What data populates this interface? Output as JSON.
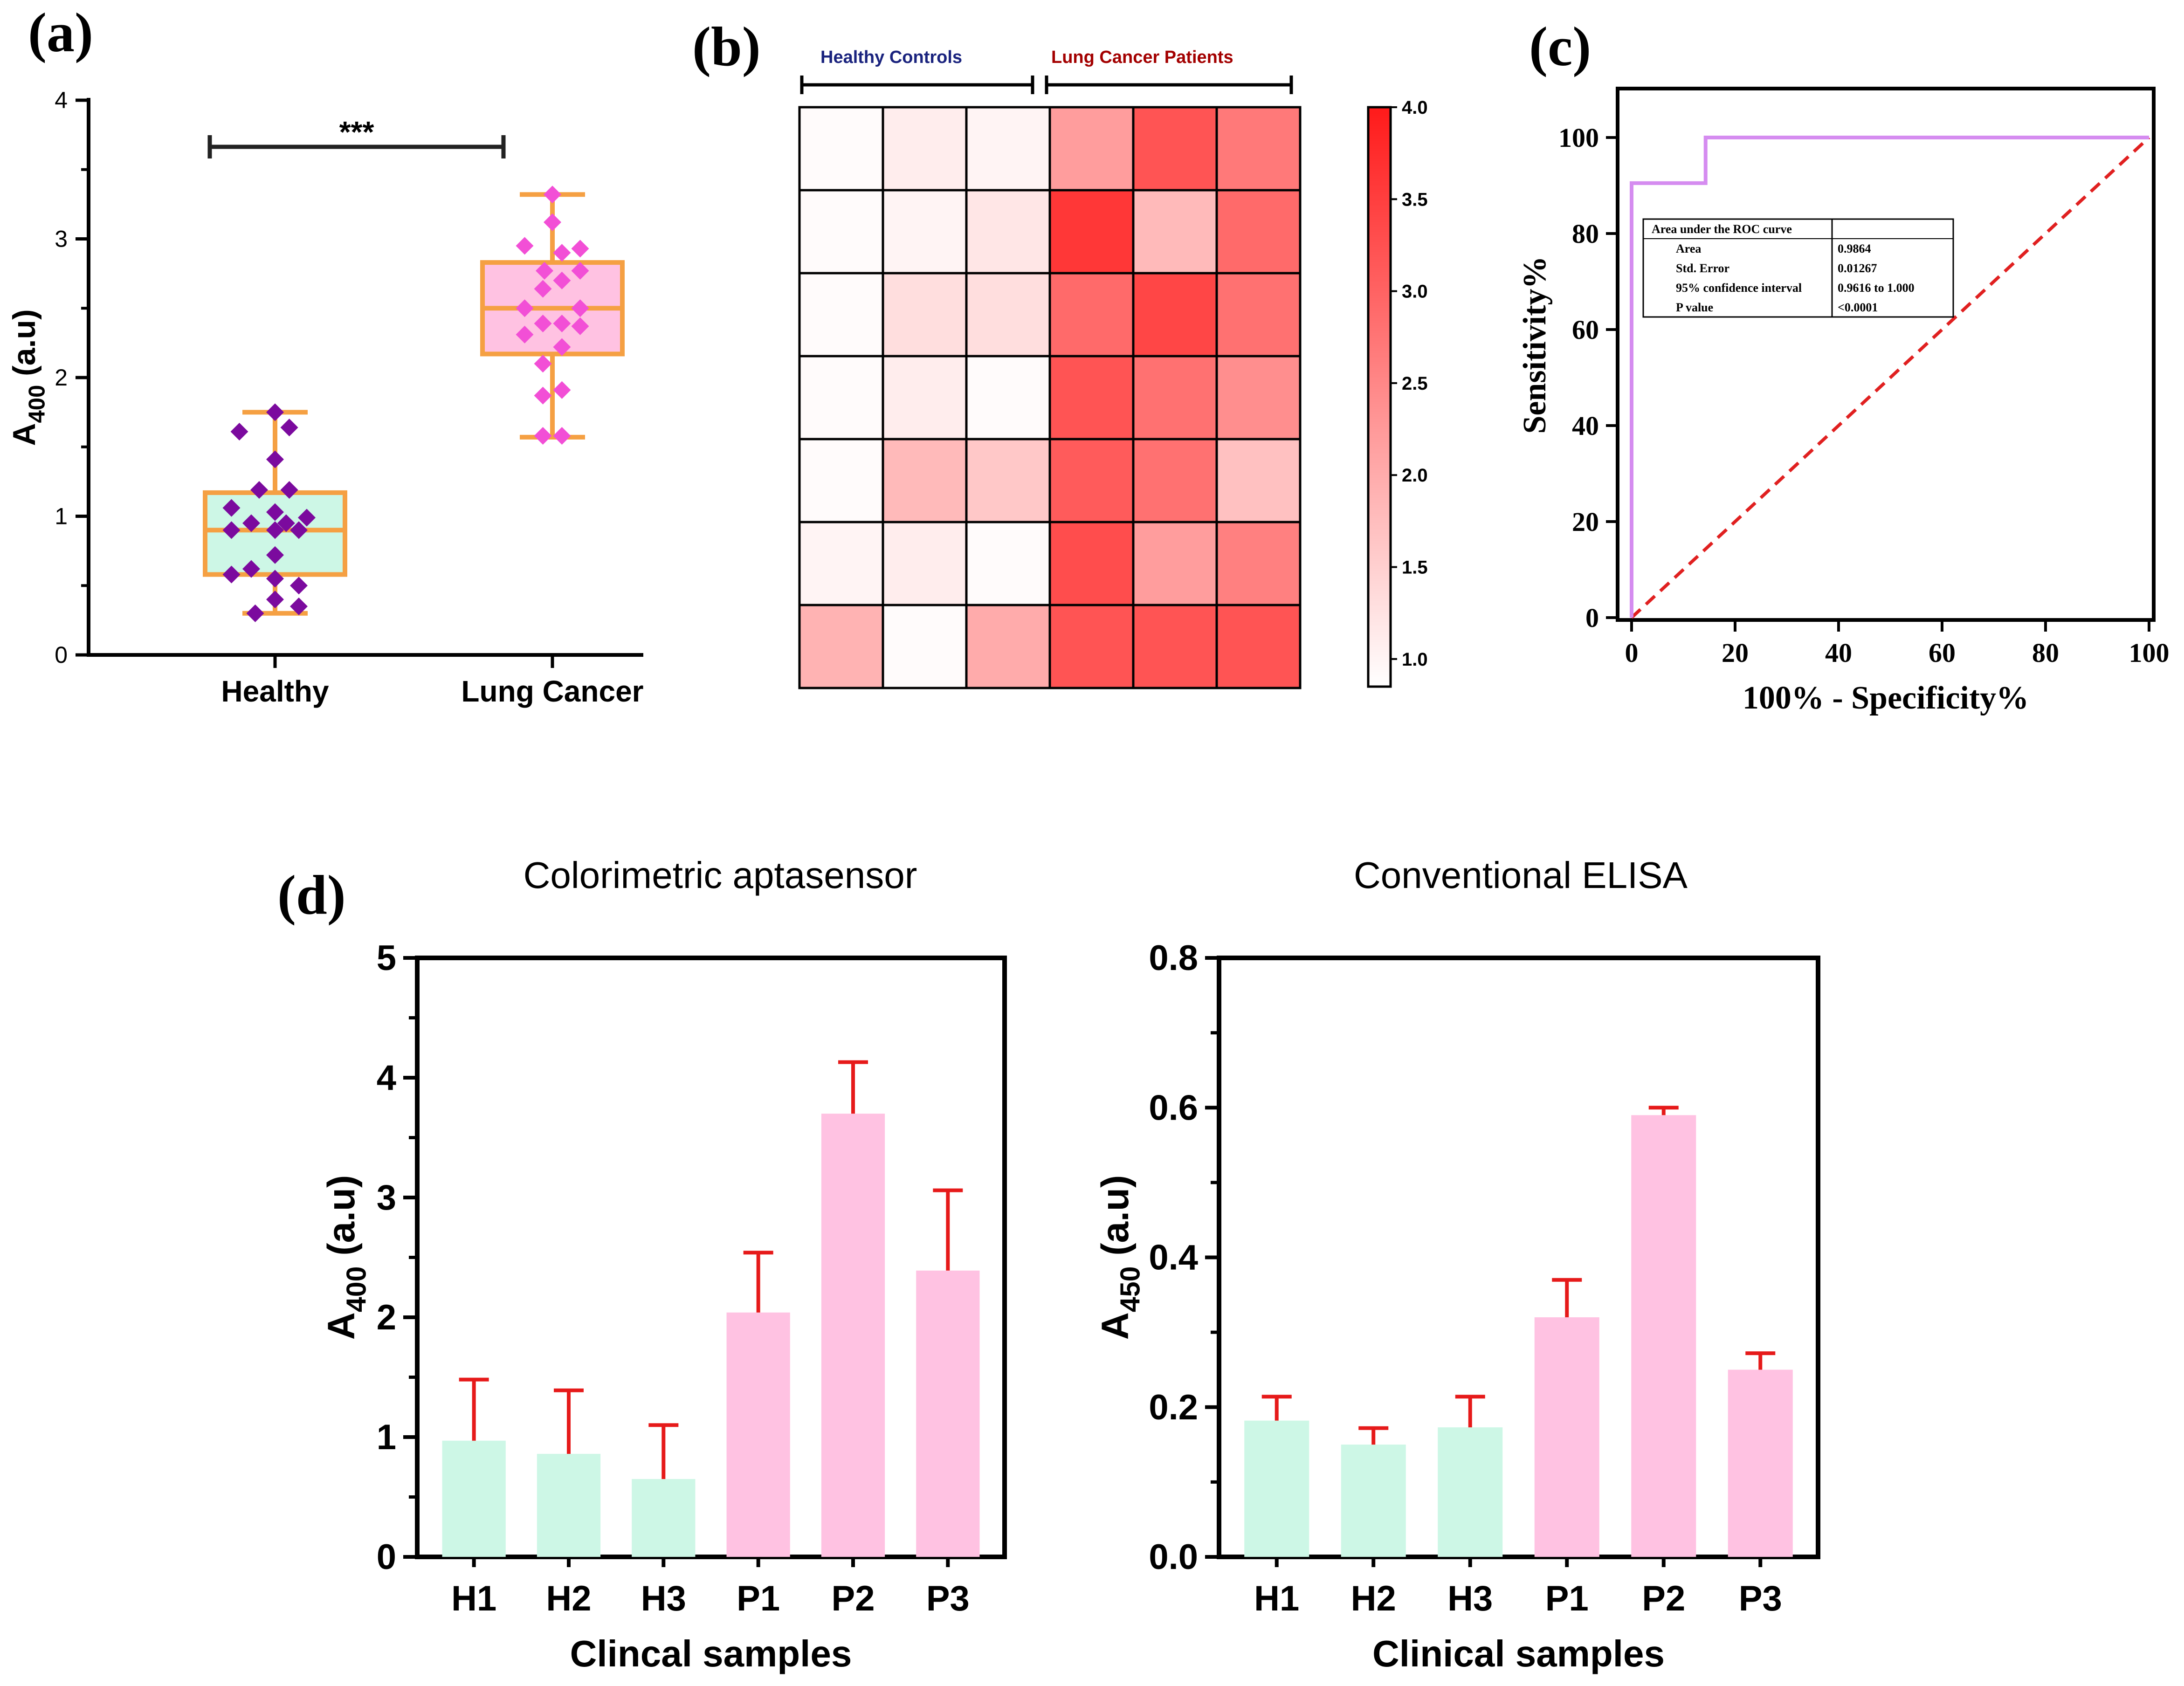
{
  "panel_labels": {
    "a": "(a)",
    "b": "(b)",
    "c": "(c)",
    "d": "(d)"
  },
  "colors": {
    "healthy_fill": "#cdf7e6",
    "cancer_fill": "#ffc2e2",
    "box_edge": "#f5a043",
    "healthy_point": "#7b0a9e",
    "cancer_point": "#f24fd6",
    "roc_line": "#d58cf0",
    "ref_line": "#e02020",
    "error_bar": "#e61a1a",
    "heat_max": "#ff1a1a",
    "heat_min": "#ffffff",
    "healthy_label": "#1a237e",
    "cancer_label": "#a30000"
  },
  "chart_data": [
    {
      "id": "a",
      "type": "box",
      "title": "",
      "ylabel": {
        "main": "A",
        "sub": "400",
        "tail": " (a.u)"
      },
      "ylim": [
        0,
        4
      ],
      "yticks": [
        "0",
        "1",
        "2",
        "3",
        "4"
      ],
      "categories": [
        "Healthy",
        "Lung Cancer"
      ],
      "significance": "***",
      "boxes": [
        {
          "name": "Healthy",
          "min": 0.3,
          "q1": 0.58,
          "median": 0.9,
          "q3": 1.17,
          "max": 1.75
        },
        {
          "name": "Lung Cancer",
          "min": 1.57,
          "q1": 2.17,
          "median": 2.5,
          "q3": 2.83,
          "max": 3.32
        }
      ],
      "points": [
        [
          {
            "dx": -0.45,
            "y": 1.61
          },
          {
            "dx": 0.0,
            "y": 1.75
          },
          {
            "dx": 0.18,
            "y": 1.64
          },
          {
            "dx": 0.0,
            "y": 1.41
          },
          {
            "dx": -0.2,
            "y": 1.19
          },
          {
            "dx": 0.18,
            "y": 1.19
          },
          {
            "dx": -0.55,
            "y": 1.06
          },
          {
            "dx": 0.0,
            "y": 1.03
          },
          {
            "dx": 0.4,
            "y": 0.99
          },
          {
            "dx": -0.3,
            "y": 0.95
          },
          {
            "dx": 0.14,
            "y": 0.95
          },
          {
            "dx": -0.55,
            "y": 0.9
          },
          {
            "dx": 0.0,
            "y": 0.9
          },
          {
            "dx": 0.3,
            "y": 0.9
          },
          {
            "dx": 0.0,
            "y": 0.72
          },
          {
            "dx": -0.3,
            "y": 0.62
          },
          {
            "dx": -0.55,
            "y": 0.58
          },
          {
            "dx": 0.0,
            "y": 0.55
          },
          {
            "dx": 0.3,
            "y": 0.5
          },
          {
            "dx": 0.0,
            "y": 0.4
          },
          {
            "dx": 0.3,
            "y": 0.35
          },
          {
            "dx": -0.25,
            "y": 0.3
          }
        ],
        [
          {
            "dx": 0.0,
            "y": 3.32
          },
          {
            "dx": 0.0,
            "y": 3.12
          },
          {
            "dx": -0.35,
            "y": 2.95
          },
          {
            "dx": 0.35,
            "y": 2.93
          },
          {
            "dx": 0.12,
            "y": 2.9
          },
          {
            "dx": -0.1,
            "y": 2.77
          },
          {
            "dx": 0.35,
            "y": 2.77
          },
          {
            "dx": 0.12,
            "y": 2.7
          },
          {
            "dx": -0.12,
            "y": 2.64
          },
          {
            "dx": -0.35,
            "y": 2.5
          },
          {
            "dx": 0.35,
            "y": 2.5
          },
          {
            "dx": -0.12,
            "y": 2.39
          },
          {
            "dx": 0.12,
            "y": 2.39
          },
          {
            "dx": 0.35,
            "y": 2.37
          },
          {
            "dx": -0.35,
            "y": 2.31
          },
          {
            "dx": 0.12,
            "y": 2.22
          },
          {
            "dx": -0.12,
            "y": 2.1
          },
          {
            "dx": 0.12,
            "y": 1.91
          },
          {
            "dx": -0.12,
            "y": 1.87
          },
          {
            "dx": -0.12,
            "y": 1.58
          },
          {
            "dx": 0.12,
            "y": 1.58
          }
        ]
      ]
    },
    {
      "id": "b",
      "type": "heatmap",
      "group_labels": [
        "Healthy Controls",
        "Lung Cancer Patients"
      ],
      "group_columns": [
        3,
        3
      ],
      "colorbar": {
        "min": 0.85,
        "max": 4.0,
        "ticks": [
          "1.0",
          "1.5",
          "2.0",
          "2.5",
          "3.0",
          "3.5",
          "4.0"
        ]
      },
      "values": [
        [
          0.9,
          1.1,
          1.0,
          2.2,
          3.2,
          2.7
        ],
        [
          0.9,
          1.0,
          1.2,
          3.6,
          1.8,
          2.9
        ],
        [
          0.9,
          1.3,
          1.3,
          2.9,
          3.4,
          2.8
        ],
        [
          0.9,
          1.1,
          0.9,
          3.2,
          2.8,
          2.4
        ],
        [
          0.9,
          1.8,
          1.6,
          3.1,
          2.8,
          1.7
        ],
        [
          1.0,
          1.1,
          0.9,
          3.3,
          2.2,
          2.6
        ],
        [
          1.9,
          0.9,
          2.0,
          3.2,
          3.2,
          3.2
        ]
      ]
    },
    {
      "id": "c",
      "type": "line",
      "xlabel": "100% - Specificity%",
      "ylabel": "Sensitivity%",
      "xlim": [
        0,
        100
      ],
      "ylim": [
        0,
        100
      ],
      "xticks": [
        "0",
        "20",
        "40",
        "60",
        "80",
        "100"
      ],
      "yticks": [
        "0",
        "20",
        "40",
        "60",
        "80",
        "100"
      ],
      "series": [
        {
          "name": "ROC",
          "x": [
            0,
            0,
            14.3,
            14.3,
            100
          ],
          "y": [
            0,
            90.5,
            90.5,
            100,
            100
          ]
        },
        {
          "name": "Reference",
          "x": [
            0,
            100
          ],
          "y": [
            0,
            100
          ]
        }
      ],
      "table": {
        "header": "Area under the ROC curve",
        "rows": [
          [
            "Area",
            "0.9864"
          ],
          [
            "Std. Error",
            "0.01267"
          ],
          [
            "95% confidence interval",
            "0.9616 to 1.000"
          ],
          [
            "P value",
            "<0.0001"
          ]
        ]
      }
    },
    {
      "id": "d1",
      "type": "bar",
      "title": "Colorimetric aptasensor",
      "xlabel": "Clincal samples",
      "ylabel": {
        "main": "A",
        "sub": "400",
        "tail": " (a.u)"
      },
      "ylim": [
        0,
        5
      ],
      "yticks": [
        "0",
        "1",
        "2",
        "3",
        "4",
        "5"
      ],
      "categories": [
        "H1",
        "H2",
        "H3",
        "P1",
        "P2",
        "P3"
      ],
      "values": [
        0.97,
        0.86,
        0.65,
        2.04,
        3.7,
        2.39
      ],
      "errors": [
        0.51,
        0.53,
        0.45,
        0.5,
        0.43,
        0.67
      ],
      "groups": [
        "healthy",
        "healthy",
        "healthy",
        "cancer",
        "cancer",
        "cancer"
      ]
    },
    {
      "id": "d2",
      "type": "bar",
      "title": "Conventional ELISA",
      "xlabel": "Clinical samples",
      "ylabel": {
        "main": "A",
        "sub": "450",
        "tail": " (a.u)"
      },
      "ylim": [
        0,
        0.8
      ],
      "yticks": [
        "0.0",
        "0.2",
        "0.4",
        "0.6",
        "0.8"
      ],
      "categories": [
        "H1",
        "H2",
        "H3",
        "P1",
        "P2",
        "P3"
      ],
      "values": [
        0.182,
        0.15,
        0.173,
        0.32,
        0.59,
        0.25
      ],
      "errors": [
        0.032,
        0.022,
        0.041,
        0.05,
        0.01,
        0.022
      ],
      "groups": [
        "healthy",
        "healthy",
        "healthy",
        "cancer",
        "cancer",
        "cancer"
      ]
    }
  ]
}
